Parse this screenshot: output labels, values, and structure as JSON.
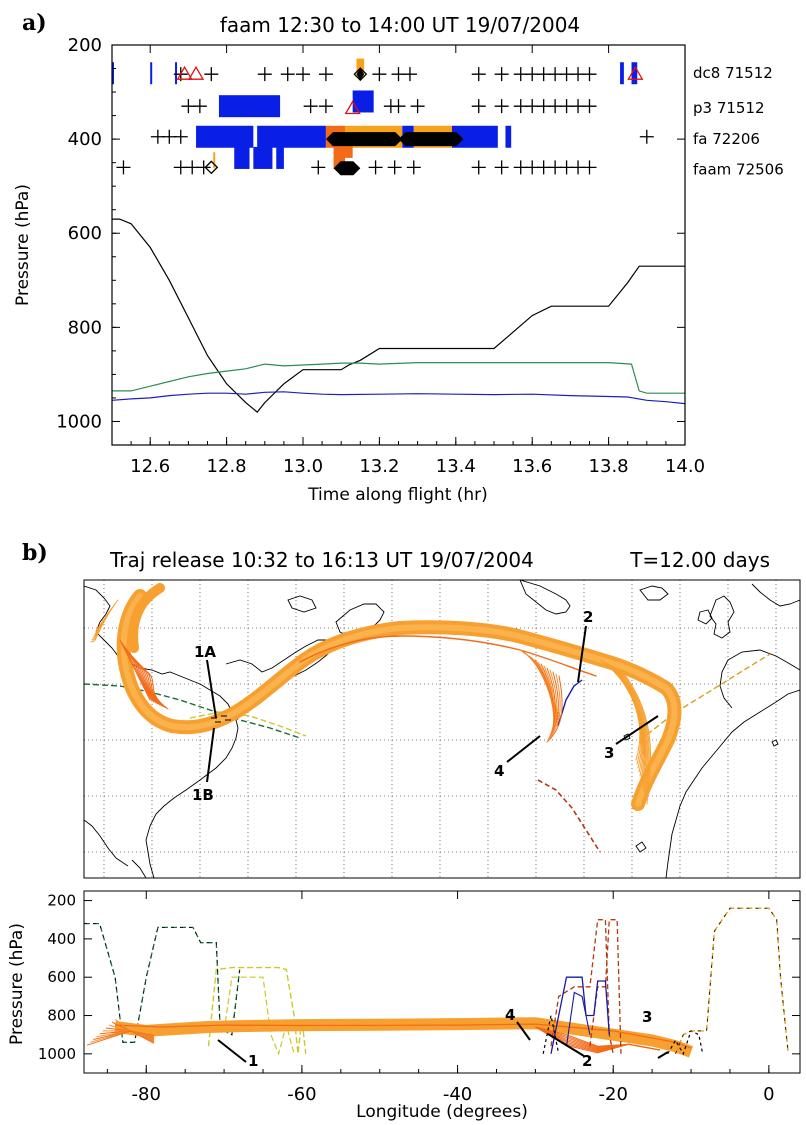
{
  "panel_a_label": "a)",
  "panel_b_label": "b)",
  "chart_data": [
    {
      "type": "line",
      "title": "faam 12:30 to 14:00 UT 19/07/2004",
      "xlabel": "Time along flight  (hr)",
      "ylabel": "Pressure  (hPa)",
      "xlim": [
        12.5,
        14.0
      ],
      "ylim": [
        1050,
        200
      ],
      "xticks": [
        "12.6",
        "12.8",
        "13.0",
        "13.2",
        "13.4",
        "13.6",
        "13.8",
        "14.0"
      ],
      "yticks": [
        "200",
        "400",
        "600",
        "800",
        "1000"
      ],
      "flight_tracks": [
        {
          "label": "dc8 71512",
          "pressure": 260
        },
        {
          "label": "p3 71512",
          "pressure": 330
        },
        {
          "label": "fa 72206",
          "pressure": 400
        },
        {
          "label": "faam 72506",
          "pressure": 460
        }
      ],
      "series": [
        {
          "color": "#000000",
          "x": [
            12.5,
            12.52,
            12.55,
            12.6,
            12.65,
            12.7,
            12.75,
            12.8,
            12.85,
            12.88,
            12.9,
            12.95,
            13.0,
            13.05,
            13.1,
            13.12,
            13.15,
            13.2,
            13.25,
            13.3,
            13.35,
            13.4,
            13.45,
            13.5,
            13.55,
            13.6,
            13.65,
            13.7,
            13.75,
            13.8,
            13.85,
            13.88,
            13.9,
            14.0
          ],
          "y": [
            570,
            570,
            580,
            630,
            700,
            780,
            860,
            920,
            960,
            980,
            960,
            920,
            890,
            890,
            890,
            880,
            870,
            845,
            845,
            845,
            845,
            845,
            845,
            845,
            810,
            775,
            755,
            755,
            755,
            755,
            705,
            670,
            670,
            670
          ]
        },
        {
          "color": "#2e8b57",
          "x": [
            12.5,
            12.55,
            12.6,
            12.65,
            12.7,
            12.75,
            12.8,
            12.85,
            12.9,
            12.95,
            13.0,
            13.05,
            13.1,
            13.15,
            13.2,
            13.3,
            13.4,
            13.5,
            13.6,
            13.7,
            13.8,
            13.86,
            13.88,
            13.9,
            14.0
          ],
          "y": [
            935,
            935,
            925,
            915,
            905,
            898,
            893,
            888,
            878,
            882,
            880,
            878,
            876,
            876,
            878,
            875,
            875,
            875,
            875,
            875,
            875,
            878,
            935,
            940,
            940
          ]
        },
        {
          "color": "#1f1fbf",
          "x": [
            12.5,
            12.55,
            12.6,
            12.65,
            12.7,
            12.75,
            12.8,
            12.85,
            12.9,
            12.95,
            13.0,
            13.05,
            13.1,
            13.2,
            13.3,
            13.4,
            13.5,
            13.6,
            13.7,
            13.8,
            13.85,
            13.9,
            13.95,
            14.0
          ],
          "y": [
            955,
            952,
            950,
            945,
            942,
            940,
            940,
            942,
            938,
            937,
            940,
            942,
            943,
            942,
            941,
            942,
            943,
            942,
            945,
            947,
            948,
            955,
            958,
            962
          ]
        }
      ]
    },
    {
      "type": "map",
      "title": "Traj release 10:32 to 16:13 UT 19/07/2004",
      "subtitle": "T=12.00 days",
      "annotations": [
        "1A",
        "1B",
        "2",
        "3",
        "4"
      ]
    },
    {
      "type": "line",
      "xlabel": "Longitude  (degrees)",
      "ylabel": "Pressure  (hPa)",
      "xlim": [
        -88,
        4
      ],
      "ylim": [
        1100,
        150
      ],
      "xticks": [
        "-80",
        "-60",
        "-40",
        "-20",
        "0"
      ],
      "yticks": [
        "200",
        "400",
        "600",
        "800",
        "1000"
      ],
      "annotations": [
        "4",
        "3",
        "1",
        "2"
      ]
    }
  ]
}
